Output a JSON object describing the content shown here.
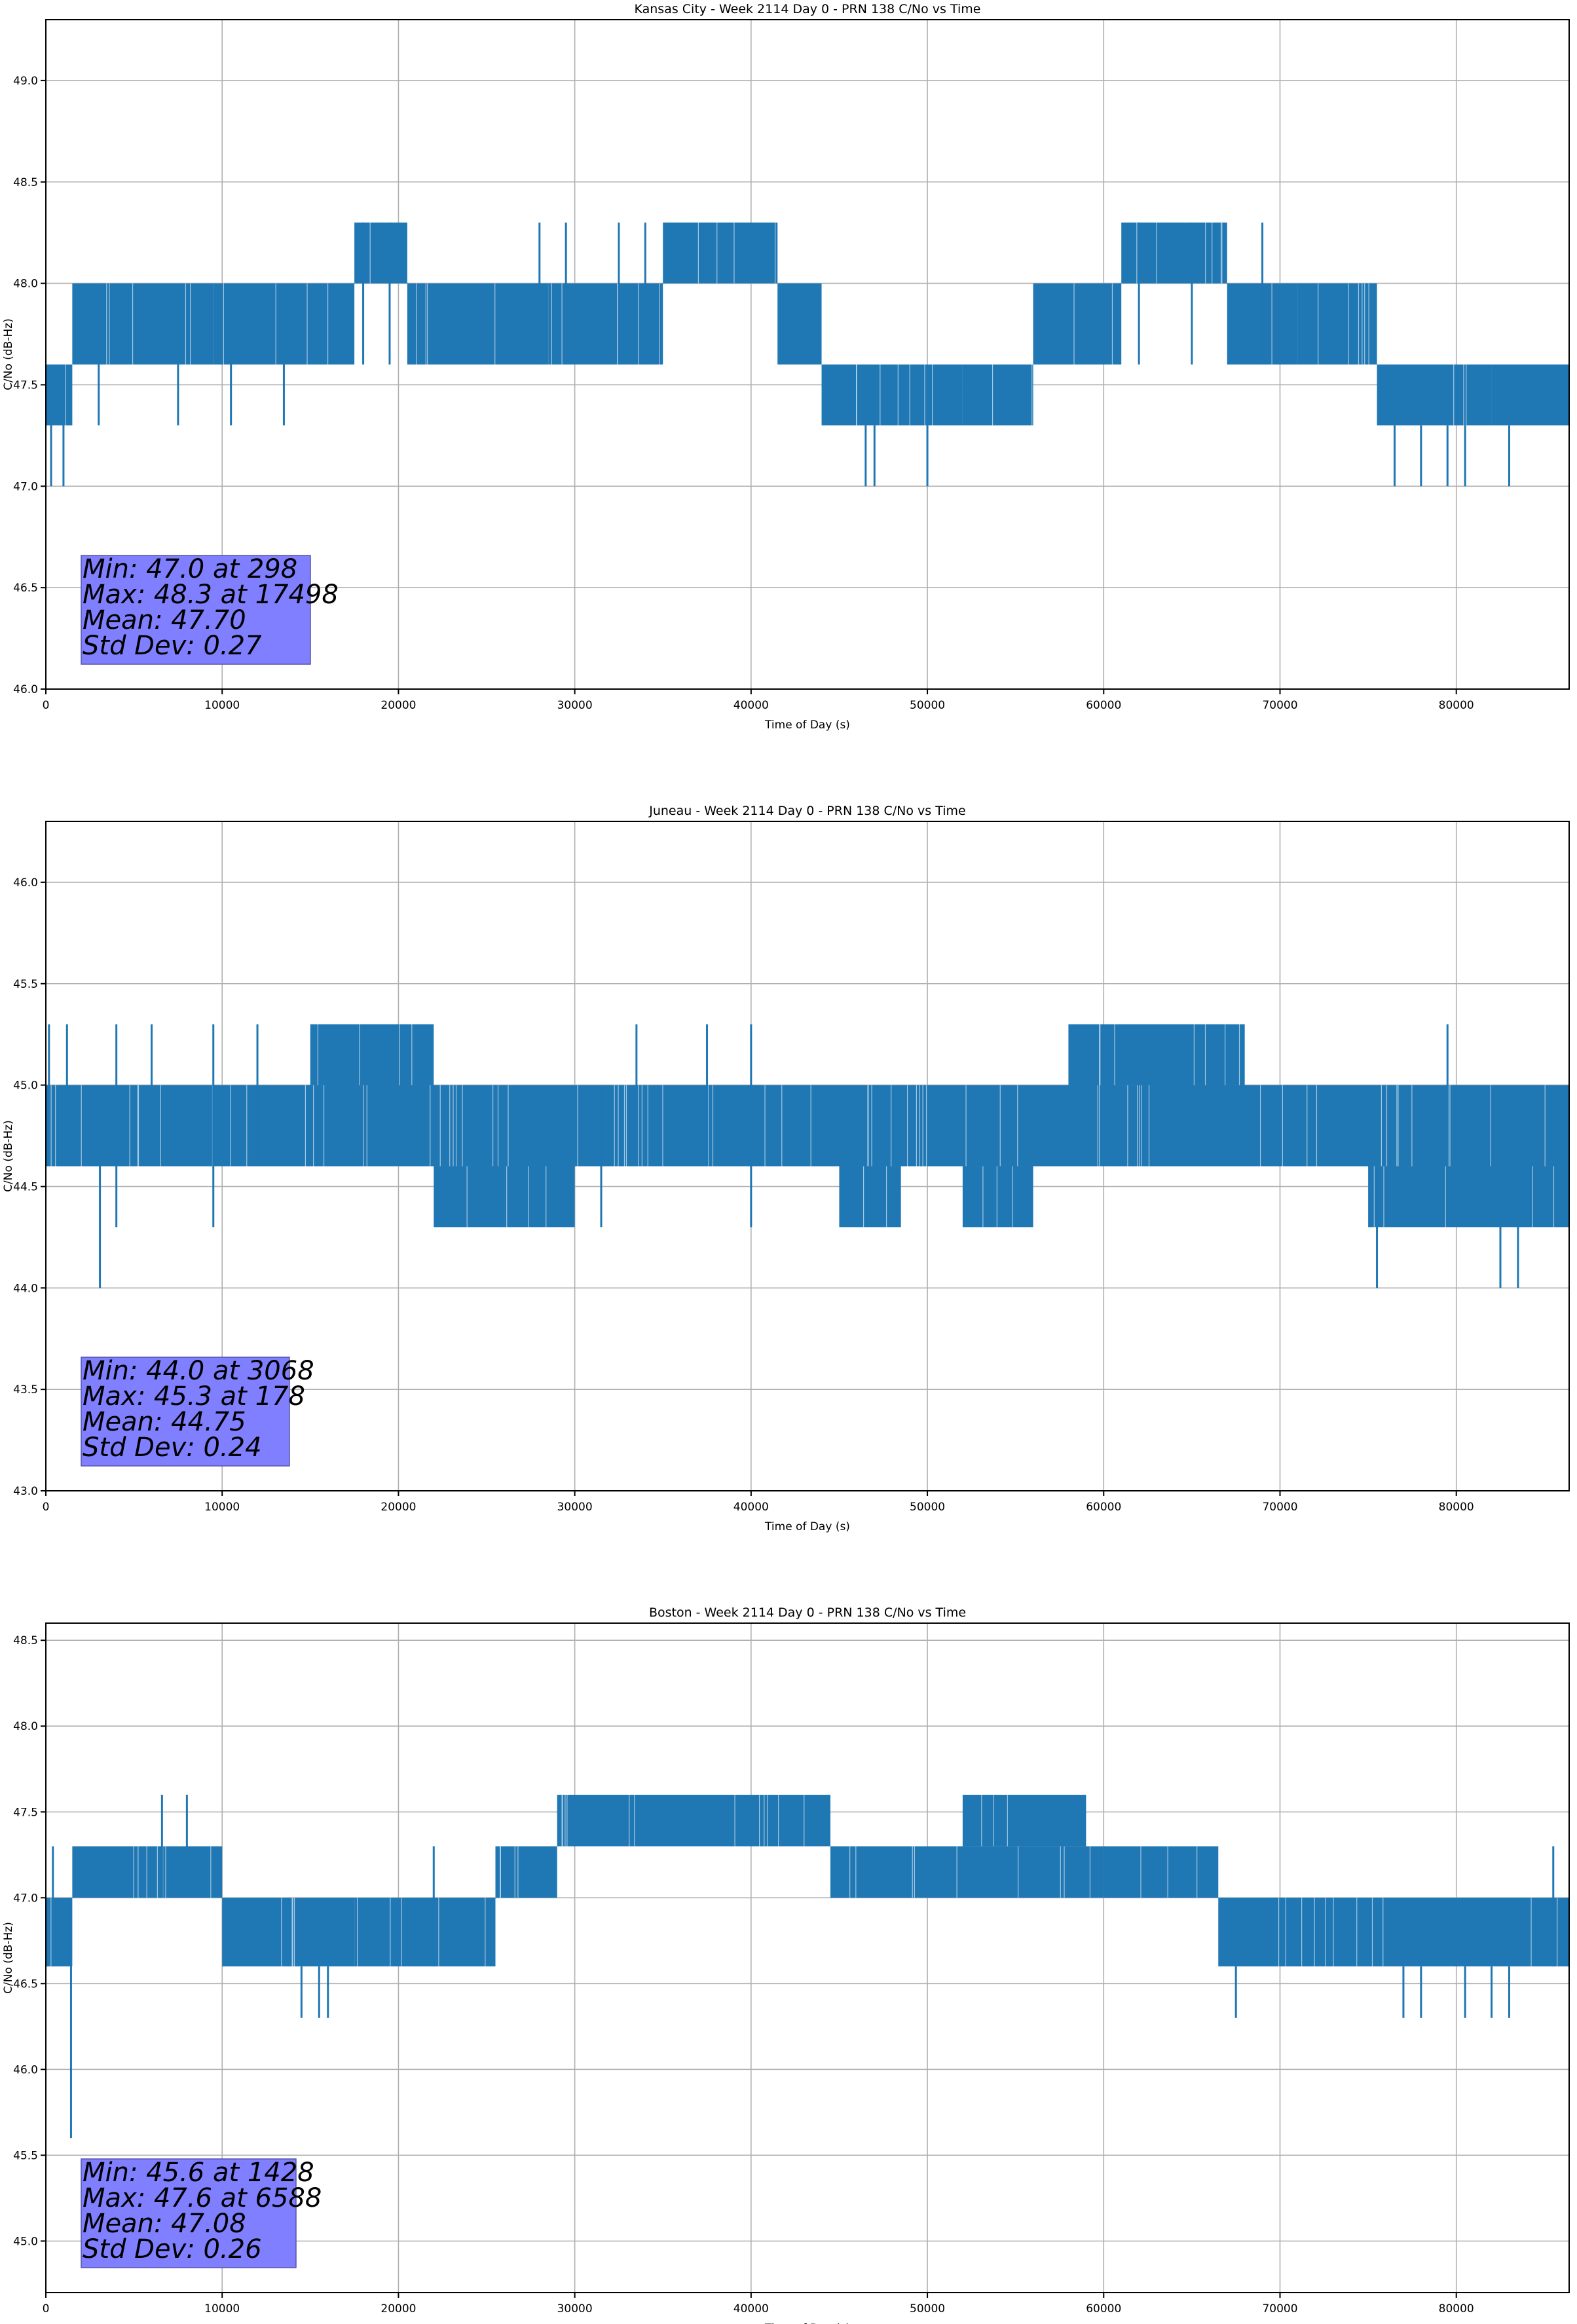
{
  "chart_data": [
    {
      "type": "line",
      "title": "Kansas City - Week 2114 Day 0 - PRN 138 C/No vs Time",
      "xlabel": "Time of Day (s)",
      "ylabel": "C/No (dB-Hz)",
      "xlim": [
        0,
        86400
      ],
      "ylim": [
        46.0,
        49.3
      ],
      "xticks": [
        0,
        10000,
        20000,
        30000,
        40000,
        50000,
        60000,
        70000,
        80000
      ],
      "xtick_labels": [
        "0",
        "10000",
        "20000",
        "30000",
        "40000",
        "50000",
        "60000",
        "70000",
        "80000"
      ],
      "yticks": [
        46.0,
        46.5,
        47.0,
        47.5,
        48.0,
        48.5,
        49.0
      ],
      "ytick_labels": [
        "46.0",
        "46.5",
        "47.0",
        "47.5",
        "48.0",
        "48.5",
        "49.0"
      ],
      "grid": true,
      "color": "#1f77b4",
      "series": [
        {
          "segments": [
            {
              "x0": 0,
              "x1": 1500,
              "lo": 47.3,
              "hi": 47.6
            },
            {
              "x0": 1500,
              "x1": 9500,
              "lo": 47.6,
              "hi": 48.0
            },
            {
              "x0": 9500,
              "x1": 17500,
              "lo": 47.6,
              "hi": 48.0
            },
            {
              "x0": 17500,
              "x1": 20500,
              "lo": 48.0,
              "hi": 48.3
            },
            {
              "x0": 20500,
              "x1": 28500,
              "lo": 47.6,
              "hi": 48.0
            },
            {
              "x0": 28500,
              "x1": 35000,
              "lo": 47.6,
              "hi": 48.0
            },
            {
              "x0": 35000,
              "x1": 41500,
              "lo": 48.0,
              "hi": 48.3
            },
            {
              "x0": 41500,
              "x1": 44000,
              "lo": 47.6,
              "hi": 48.0
            },
            {
              "x0": 44000,
              "x1": 52000,
              "lo": 47.3,
              "hi": 47.6
            },
            {
              "x0": 52000,
              "x1": 56000,
              "lo": 47.3,
              "hi": 47.6
            },
            {
              "x0": 56000,
              "x1": 61000,
              "lo": 47.6,
              "hi": 48.0
            },
            {
              "x0": 61000,
              "x1": 67000,
              "lo": 48.0,
              "hi": 48.3
            },
            {
              "x0": 67000,
              "x1": 71000,
              "lo": 47.6,
              "hi": 48.0
            },
            {
              "x0": 71000,
              "x1": 75500,
              "lo": 47.6,
              "hi": 48.0
            },
            {
              "x0": 75500,
              "x1": 82000,
              "lo": 47.3,
              "hi": 47.6
            },
            {
              "x0": 82000,
              "x1": 86400,
              "lo": 47.3,
              "hi": 47.6
            }
          ],
          "spikes": [
            {
              "x": 298,
              "lo": 47.0,
              "hi": 47.6
            },
            {
              "x": 1000,
              "lo": 47.0,
              "hi": 47.6
            },
            {
              "x": 3000,
              "lo": 47.3,
              "hi": 48.0
            },
            {
              "x": 7500,
              "lo": 47.3,
              "hi": 47.6
            },
            {
              "x": 10500,
              "lo": 47.3,
              "hi": 47.6
            },
            {
              "x": 13500,
              "lo": 47.3,
              "hi": 47.6
            },
            {
              "x": 18000,
              "lo": 47.6,
              "hi": 48.3
            },
            {
              "x": 19500,
              "lo": 47.6,
              "hi": 48.3
            },
            {
              "x": 28000,
              "lo": 47.6,
              "hi": 48.3
            },
            {
              "x": 29500,
              "lo": 47.6,
              "hi": 48.3
            },
            {
              "x": 32500,
              "lo": 47.6,
              "hi": 48.3
            },
            {
              "x": 34000,
              "lo": 47.6,
              "hi": 48.3
            },
            {
              "x": 46500,
              "lo": 47.0,
              "hi": 47.3
            },
            {
              "x": 47000,
              "lo": 47.0,
              "hi": 47.3
            },
            {
              "x": 50000,
              "lo": 47.0,
              "hi": 47.3
            },
            {
              "x": 62000,
              "lo": 47.6,
              "hi": 48.3
            },
            {
              "x": 65000,
              "lo": 47.6,
              "hi": 48.3
            },
            {
              "x": 69000,
              "lo": 47.6,
              "hi": 48.3
            },
            {
              "x": 76500,
              "lo": 47.0,
              "hi": 47.3
            },
            {
              "x": 78000,
              "lo": 47.0,
              "hi": 47.3
            },
            {
              "x": 79500,
              "lo": 47.0,
              "hi": 47.3
            },
            {
              "x": 80500,
              "lo": 47.0,
              "hi": 47.3
            },
            {
              "x": 83000,
              "lo": 47.0,
              "hi": 47.3
            }
          ]
        }
      ],
      "stats": {
        "min": "Min: 47.0 at 298",
        "max": "Max: 48.3 at 17498",
        "mean": "Mean: 47.70",
        "std": "Std Dev: 0.27"
      }
    },
    {
      "type": "line",
      "title": "Juneau - Week 2114 Day 0 - PRN 138 C/No vs Time",
      "xlabel": "Time of Day (s)",
      "ylabel": "C/No (dB-Hz)",
      "xlim": [
        0,
        86400
      ],
      "ylim": [
        43.0,
        46.3
      ],
      "xticks": [
        0,
        10000,
        20000,
        30000,
        40000,
        50000,
        60000,
        70000,
        80000
      ],
      "xtick_labels": [
        "0",
        "10000",
        "20000",
        "30000",
        "40000",
        "50000",
        "60000",
        "70000",
        "80000"
      ],
      "yticks": [
        43.0,
        43.5,
        44.0,
        44.5,
        45.0,
        45.5,
        46.0
      ],
      "ytick_labels": [
        "43.0",
        "43.5",
        "44.0",
        "44.5",
        "45.0",
        "45.5",
        "46.0"
      ],
      "grid": true,
      "color": "#1f77b4",
      "series": [
        {
          "segments": [
            {
              "x0": 0,
              "x1": 86400,
              "lo": 44.6,
              "hi": 45.0
            },
            {
              "x0": 15000,
              "x1": 22000,
              "lo": 45.0,
              "hi": 45.3
            },
            {
              "x0": 22000,
              "x1": 30000,
              "lo": 44.3,
              "hi": 44.6
            },
            {
              "x0": 45000,
              "x1": 48500,
              "lo": 44.3,
              "hi": 44.6
            },
            {
              "x0": 52000,
              "x1": 56000,
              "lo": 44.3,
              "hi": 44.6
            },
            {
              "x0": 58000,
              "x1": 68000,
              "lo": 45.0,
              "hi": 45.3
            },
            {
              "x0": 75000,
              "x1": 86400,
              "lo": 44.3,
              "hi": 44.6
            }
          ],
          "spikes": [
            {
              "x": 178,
              "lo": 44.6,
              "hi": 45.3
            },
            {
              "x": 1200,
              "lo": 44.6,
              "hi": 45.3
            },
            {
              "x": 3068,
              "lo": 44.0,
              "hi": 44.6
            },
            {
              "x": 4000,
              "lo": 44.3,
              "hi": 45.3
            },
            {
              "x": 6000,
              "lo": 44.6,
              "hi": 45.3
            },
            {
              "x": 9500,
              "lo": 44.3,
              "hi": 45.3
            },
            {
              "x": 12000,
              "lo": 44.6,
              "hi": 45.3
            },
            {
              "x": 31500,
              "lo": 44.3,
              "hi": 45.0
            },
            {
              "x": 33500,
              "lo": 44.6,
              "hi": 45.3
            },
            {
              "x": 37500,
              "lo": 44.6,
              "hi": 45.3
            },
            {
              "x": 40000,
              "lo": 44.3,
              "hi": 45.3
            },
            {
              "x": 75500,
              "lo": 44.0,
              "hi": 44.6
            },
            {
              "x": 82500,
              "lo": 44.0,
              "hi": 44.6
            },
            {
              "x": 83500,
              "lo": 44.0,
              "hi": 44.6
            },
            {
              "x": 79500,
              "lo": 44.6,
              "hi": 45.3
            }
          ]
        }
      ],
      "stats": {
        "min": "Min: 44.0 at 3068",
        "max": "Max: 45.3 at 178",
        "mean": "Mean: 44.75",
        "std": "Std Dev: 0.24"
      }
    },
    {
      "type": "line",
      "title": "Boston - Week 2114 Day 0 - PRN 138 C/No vs Time",
      "xlabel": "Time of Day (s)",
      "ylabel": "C/No (dB-Hz)",
      "xlim": [
        0,
        86400
      ],
      "ylim": [
        44.7,
        48.6
      ],
      "xticks": [
        0,
        10000,
        20000,
        30000,
        40000,
        50000,
        60000,
        70000,
        80000
      ],
      "xtick_labels": [
        "0",
        "10000",
        "20000",
        "30000",
        "40000",
        "50000",
        "60000",
        "70000",
        "80000"
      ],
      "yticks": [
        45.0,
        45.5,
        46.0,
        46.5,
        47.0,
        47.5,
        48.0,
        48.5
      ],
      "ytick_labels": [
        "45.0",
        "45.5",
        "46.0",
        "46.5",
        "47.0",
        "47.5",
        "48.0",
        "48.5"
      ],
      "grid": true,
      "color": "#1f77b4",
      "series": [
        {
          "segments": [
            {
              "x0": 0,
              "x1": 1500,
              "lo": 46.6,
              "hi": 47.0
            },
            {
              "x0": 1500,
              "x1": 10000,
              "lo": 47.0,
              "hi": 47.3
            },
            {
              "x0": 10000,
              "x1": 17500,
              "lo": 46.6,
              "hi": 47.0
            },
            {
              "x0": 17500,
              "x1": 25500,
              "lo": 46.6,
              "hi": 47.0
            },
            {
              "x0": 25500,
              "x1": 29000,
              "lo": 47.0,
              "hi": 47.3
            },
            {
              "x0": 29000,
              "x1": 44500,
              "lo": 47.3,
              "hi": 47.6
            },
            {
              "x0": 44500,
              "x1": 51000,
              "lo": 47.0,
              "hi": 47.3
            },
            {
              "x0": 51000,
              "x1": 60000,
              "lo": 47.0,
              "hi": 47.3
            },
            {
              "x0": 52000,
              "x1": 59000,
              "lo": 47.3,
              "hi": 47.6
            },
            {
              "x0": 60000,
              "x1": 66500,
              "lo": 47.0,
              "hi": 47.3
            },
            {
              "x0": 66500,
              "x1": 86400,
              "lo": 46.6,
              "hi": 47.0
            }
          ],
          "spikes": [
            {
              "x": 1428,
              "lo": 45.6,
              "hi": 47.0
            },
            {
              "x": 400,
              "lo": 46.6,
              "hi": 47.3
            },
            {
              "x": 6588,
              "lo": 47.0,
              "hi": 47.6
            },
            {
              "x": 8000,
              "lo": 47.0,
              "hi": 47.6
            },
            {
              "x": 14500,
              "lo": 46.3,
              "hi": 46.6
            },
            {
              "x": 15500,
              "lo": 46.3,
              "hi": 46.6
            },
            {
              "x": 16000,
              "lo": 46.3,
              "hi": 46.6
            },
            {
              "x": 22000,
              "lo": 46.6,
              "hi": 47.3
            },
            {
              "x": 30000,
              "lo": 47.3,
              "hi": 47.6
            },
            {
              "x": 67500,
              "lo": 46.3,
              "hi": 46.6
            },
            {
              "x": 77000,
              "lo": 46.3,
              "hi": 46.6
            },
            {
              "x": 78000,
              "lo": 46.3,
              "hi": 46.6
            },
            {
              "x": 80500,
              "lo": 46.3,
              "hi": 46.6
            },
            {
              "x": 82000,
              "lo": 46.3,
              "hi": 46.6
            },
            {
              "x": 83000,
              "lo": 46.3,
              "hi": 46.6
            },
            {
              "x": 85500,
              "lo": 46.6,
              "hi": 47.3
            }
          ]
        }
      ],
      "stats": {
        "min": "Min: 45.6 at 1428",
        "max": "Max: 47.6 at 6588",
        "mean": "Mean: 47.08",
        "std": "Std Dev: 0.26"
      }
    }
  ]
}
